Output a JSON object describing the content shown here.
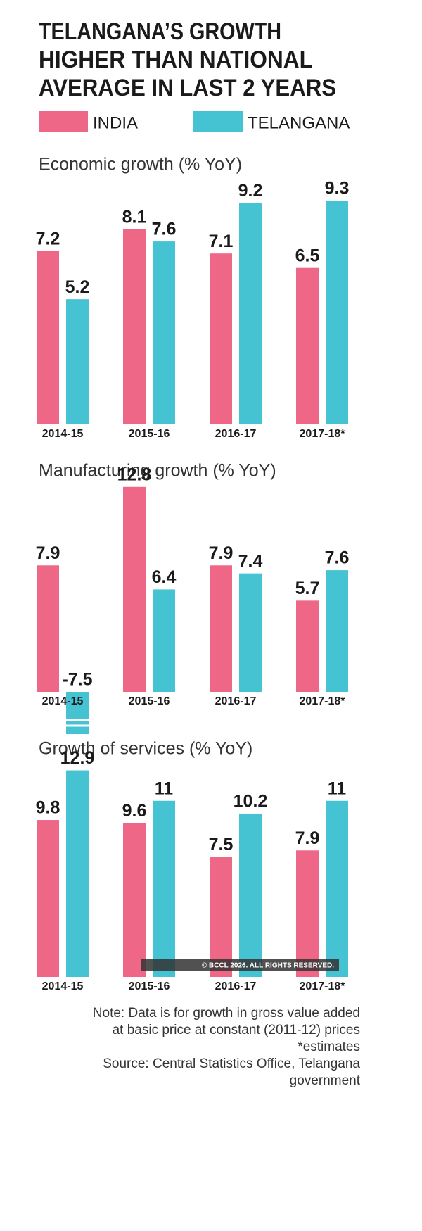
{
  "title": [
    "TELANGANA’S GROWTH",
    "HIGHER THAN NATIONAL",
    "AVERAGE IN LAST 2 YEARS"
  ],
  "chart_data": [
    {
      "type": "bar",
      "title": "Economic growth (% YoY)",
      "categories": [
        "2014-15",
        "2015-16",
        "2016-17",
        "2017-18*"
      ],
      "series": [
        {
          "name": "INDIA",
          "color": "#ef6787",
          "values": [
            7.2,
            8.1,
            7.1,
            6.5
          ]
        },
        {
          "name": "TELANGANA",
          "color": "#45c3d3",
          "values": [
            5.2,
            7.6,
            9.2,
            9.3
          ]
        }
      ]
    },
    {
      "type": "bar",
      "title": "Manufacturing growth (% YoY)",
      "categories": [
        "2014-15",
        "2015-16",
        "2016-17",
        "2017-18*"
      ],
      "series": [
        {
          "name": "INDIA",
          "color": "#ef6787",
          "values": [
            7.9,
            12.8,
            7.9,
            5.7
          ]
        },
        {
          "name": "TELANGANA",
          "color": "#45c3d3",
          "values": [
            -7.5,
            6.4,
            7.4,
            7.6
          ]
        }
      ]
    },
    {
      "type": "bar",
      "title": "Growth of services (% YoY)",
      "categories": [
        "2014-15",
        "2015-16",
        "2016-17",
        "2017-18*"
      ],
      "series": [
        {
          "name": "INDIA",
          "color": "#ef6787",
          "values": [
            9.8,
            9.6,
            7.5,
            7.9
          ]
        },
        {
          "name": "TELANGANA",
          "color": "#45c3d3",
          "values": [
            12.9,
            11,
            10.2,
            11
          ]
        }
      ]
    }
  ],
  "copyright": "© BCCL 2026. ALL RIGHTS RESERVED.",
  "notes": [
    "Note: Data is for growth in gross value added",
    "at basic price at constant (2011-12) prices",
    "*estimates",
    "Source: Central Statistics Office, Telangana",
    "government"
  ]
}
